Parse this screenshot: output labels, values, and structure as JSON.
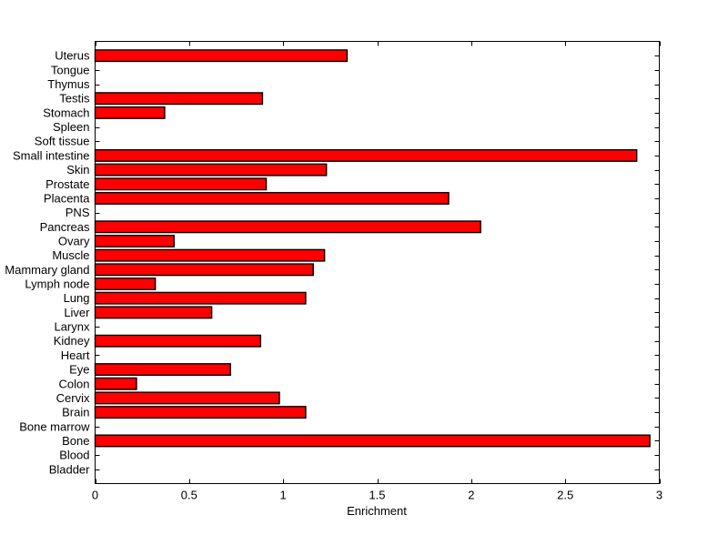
{
  "figure": {
    "background_color": "#ffffff",
    "axis_color": "#000000",
    "text_color": "#000000"
  },
  "chart_data": {
    "type": "bar",
    "orientation": "horizontal",
    "title": "",
    "xlabel": "Enrichment",
    "ylabel": "",
    "xlim": [
      0,
      3
    ],
    "xticks": [
      0,
      0.5,
      1,
      1.5,
      2,
      2.5,
      3
    ],
    "xtick_labels": [
      "0",
      "0.5",
      "1",
      "1.5",
      "2",
      "2.5",
      "3"
    ],
    "grid": false,
    "legend": null,
    "box": true,
    "bar_color": "#ff0000",
    "bar_edge_color": "#000000",
    "category_order": "top-to-bottom",
    "categories": [
      "Uterus",
      "Tongue",
      "Thymus",
      "Testis",
      "Stomach",
      "Spleen",
      "Soft tissue",
      "Small intestine",
      "Skin",
      "Prostate",
      "Placenta",
      "PNS",
      "Pancreas",
      "Ovary",
      "Muscle",
      "Mammary gland",
      "Lymph node",
      "Lung",
      "Liver",
      "Larynx",
      "Kidney",
      "Heart",
      "Eye",
      "Colon",
      "Cervix",
      "Brain",
      "Bone marrow",
      "Bone",
      "Blood",
      "Bladder"
    ],
    "values": [
      1.34,
      0,
      0,
      0.89,
      0.37,
      0,
      0,
      2.88,
      1.23,
      0.91,
      1.88,
      0,
      2.05,
      0.42,
      1.22,
      1.16,
      0.32,
      1.12,
      0.62,
      0,
      0.88,
      0,
      0.72,
      0.22,
      0.98,
      1.12,
      0,
      2.95,
      0,
      0
    ]
  }
}
